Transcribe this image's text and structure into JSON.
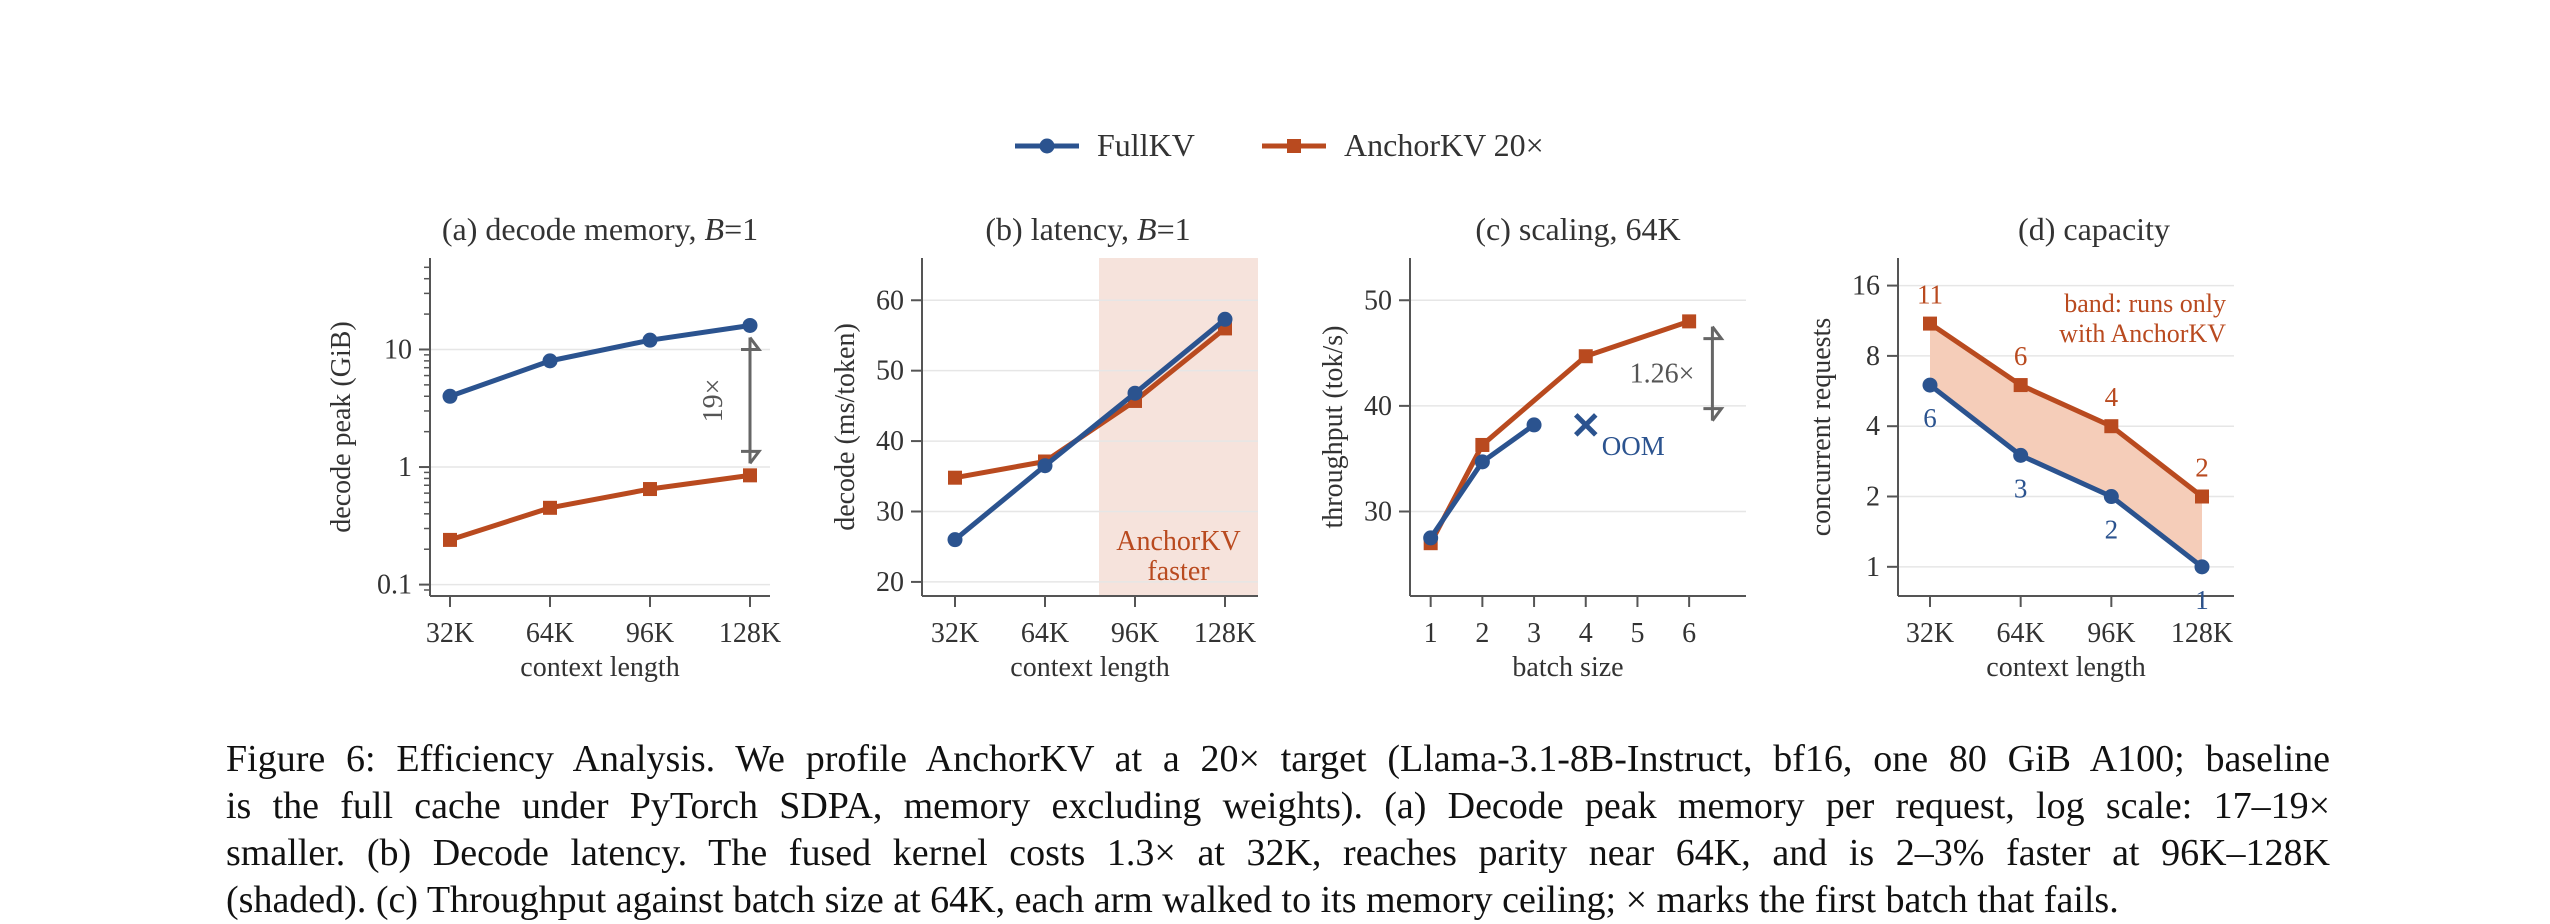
{
  "legend": [
    {
      "name": "FullKV",
      "color": "#2b538f",
      "marker": "circle"
    },
    {
      "name": "AnchorKV 20×",
      "color": "#b94a1f",
      "marker": "square"
    }
  ],
  "colors": {
    "full": "#2b538f",
    "anchor": "#b94a1f",
    "shade": "#f6e3dc",
    "band": "#f5cdb9",
    "annot": "#666666"
  },
  "chart_data": [
    {
      "type": "line",
      "title_prefix": "(a) decode memory, ",
      "title_var": "B",
      "title_eq": "=1",
      "xlabel": "context length",
      "ylabel": "decode peak (GiB)",
      "categories": [
        "32K",
        "64K",
        "96K",
        "128K"
      ],
      "yscale": "log",
      "yticks": [
        {
          "v": 0.1,
          "label": "0.1"
        },
        {
          "v": 1,
          "label": "1"
        },
        {
          "v": 10,
          "label": "10"
        }
      ],
      "ylim": [
        0.08,
        60
      ],
      "series": [
        {
          "name": "FullKV",
          "values": [
            4.0,
            8.0,
            12.0,
            16.0
          ]
        },
        {
          "name": "AnchorKV 20×",
          "values": [
            0.24,
            0.45,
            0.65,
            0.85
          ]
        }
      ],
      "annotation": {
        "text": "19×",
        "category_index": 3,
        "from": 16.0,
        "to": 0.85
      }
    },
    {
      "type": "line",
      "title_prefix": "(b) latency, ",
      "title_var": "B",
      "title_eq": "=1",
      "xlabel": "context length",
      "ylabel": "decode (ms/token)",
      "categories": [
        "32K",
        "64K",
        "96K",
        "128K"
      ],
      "yscale": "linear",
      "yticks": [
        {
          "v": 20,
          "label": "20"
        },
        {
          "v": 30,
          "label": "30"
        },
        {
          "v": 40,
          "label": "40"
        },
        {
          "v": 50,
          "label": "50"
        },
        {
          "v": 60,
          "label": "60"
        }
      ],
      "ylim": [
        18,
        66
      ],
      "series": [
        {
          "name": "FullKV",
          "values": [
            26.0,
            36.5,
            46.8,
            57.3
          ]
        },
        {
          "name": "AnchorKV 20×",
          "values": [
            34.8,
            37.1,
            45.7,
            56.0
          ]
        }
      ],
      "shaded_region": {
        "from_index": 1.6,
        "label_lines": [
          "AnchorKV",
          "faster"
        ]
      }
    },
    {
      "type": "line",
      "title_prefix": "(c) scaling, 64K",
      "xlabel": "batch size",
      "ylabel": "throughput (tok/s)",
      "x": [
        1,
        2,
        3,
        4,
        5,
        6
      ],
      "xlim": [
        0.6,
        7.1
      ],
      "yscale": "linear",
      "yticks": [
        {
          "v": 30,
          "label": "30"
        },
        {
          "v": 40,
          "label": "40"
        },
        {
          "v": 50,
          "label": "50"
        }
      ],
      "ylim": [
        22,
        54
      ],
      "series": [
        {
          "name": "FullKV",
          "x": [
            1,
            2,
            3
          ],
          "values": [
            27.5,
            34.7,
            38.2
          ]
        },
        {
          "name": "AnchorKV 20×",
          "x": [
            1,
            2,
            4,
            6
          ],
          "values": [
            27.0,
            36.3,
            44.7,
            48.0
          ]
        }
      ],
      "oom": {
        "x": 4,
        "y": 38.2,
        "label": "OOM"
      },
      "annotation": {
        "text": "1.26×",
        "x": 6.45,
        "from": 47.5,
        "to": 38.6
      }
    },
    {
      "type": "line",
      "title_prefix": "(d) capacity",
      "xlabel": "context length",
      "ylabel": "concurrent requests",
      "categories": [
        "32K",
        "64K",
        "96K",
        "128K"
      ],
      "yscale": "log2",
      "yticks": [
        {
          "v": 1,
          "label": "1"
        },
        {
          "v": 2,
          "label": "2"
        },
        {
          "v": 4,
          "label": "4"
        },
        {
          "v": 8,
          "label": "8"
        },
        {
          "v": 16,
          "label": "16"
        }
      ],
      "ylim": [
        0.75,
        21
      ],
      "series": [
        {
          "name": "FullKV",
          "values": [
            6,
            3,
            2,
            1
          ],
          "labels": [
            "6",
            "3",
            "2",
            "1"
          ]
        },
        {
          "name": "AnchorKV 20×",
          "values": [
            11,
            6,
            4,
            2
          ],
          "labels": [
            "11",
            "6",
            "4",
            "2"
          ]
        }
      ],
      "band_label_lines": [
        "band: runs only",
        "with AnchorKV"
      ]
    }
  ],
  "caption": {
    "lines": [
      "Figure 6: Efficiency Analysis. We profile AnchorKV at a 20× target (Llama-3.1-8B-Instruct, bf16, one 80 GiB A100; baseline",
      "is the full cache under PyTorch SDPA, memory excluding weights). (a) Decode peak memory per request, log scale: 17–19×",
      "smaller. (b) Decode latency. The fused kernel costs 1.3× at 32K, reaches parity near 64K, and is 2–3% faster at 96K–128K",
      "(shaded). (c) Throughput against batch size at 64K, each arm walked to its memory ceiling; × marks the first batch that fails."
    ]
  }
}
